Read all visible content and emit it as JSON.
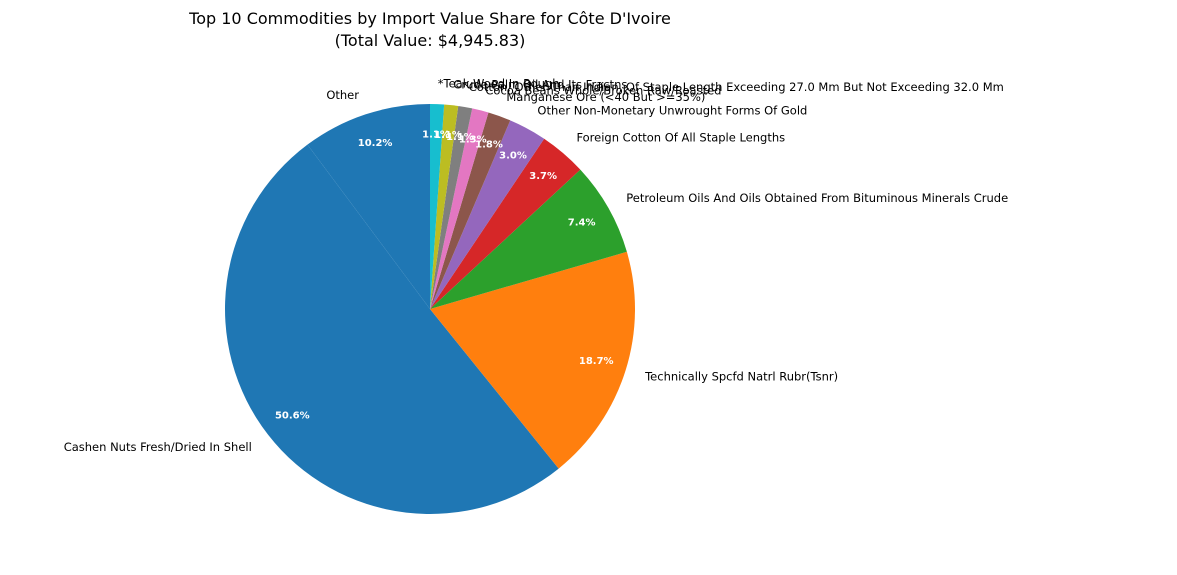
{
  "chart_data": {
    "type": "pie",
    "title": "Top 10 Commodities by Import Value Share for Côte D'Ivoire",
    "subtitle": "(Total Value: $4,945.83)",
    "start_angle_deg": 90,
    "direction": "counterclockwise",
    "slices": [
      {
        "label": "Other",
        "value": 10.2,
        "pct_label": "10.2%",
        "color": "#1f77b4"
      },
      {
        "label": "Cashen Nuts Fresh/Dried In Shell",
        "value": 50.6,
        "pct_label": "50.6%",
        "color": "#1f77b4"
      },
      {
        "label": "Technically Spcfd Natrl Rubr(Tsnr)",
        "value": 18.7,
        "pct_label": "18.7%",
        "color": "#ff7f0e"
      },
      {
        "label": "Petroleum Oils And Oils Obtained From Bituminous Minerals Crude",
        "value": 7.4,
        "pct_label": "7.4%",
        "color": "#2ca02c"
      },
      {
        "label": "Foreign Cotton Of All Staple Lengths",
        "value": 3.7,
        "pct_label": "3.7%",
        "color": "#d62728"
      },
      {
        "label": "Other Non-Monetary Unwrought Forms Of Gold",
        "value": 3.0,
        "pct_label": "3.0%",
        "color": "#9467bd"
      },
      {
        "label": "Manganese Ore (<40 But >=35%)",
        "value": 1.8,
        "pct_label": "1.8%",
        "color": "#8c564b"
      },
      {
        "label": "Cocoa Beans Whole/Broken Raw/Roasted",
        "value": 1.3,
        "pct_label": "1.3%",
        "color": "#e377c2"
      },
      {
        "label": "Cotton, Other Than Indian, Of Staple Length Exceeding 27.0 Mm But Not Exceeding 32.0 Mm",
        "value": 1.1,
        "pct_label": "1.1%",
        "color": "#7f7f7f"
      },
      {
        "label": "Crude Palm Oil And Its Fractns",
        "value": 1.1,
        "pct_label": "1.1%",
        "color": "#bcbd22"
      },
      {
        "label": "*Teak Wood In Rough",
        "value": 1.1,
        "pct_label": "1.1%",
        "color": "#17becf"
      }
    ]
  }
}
